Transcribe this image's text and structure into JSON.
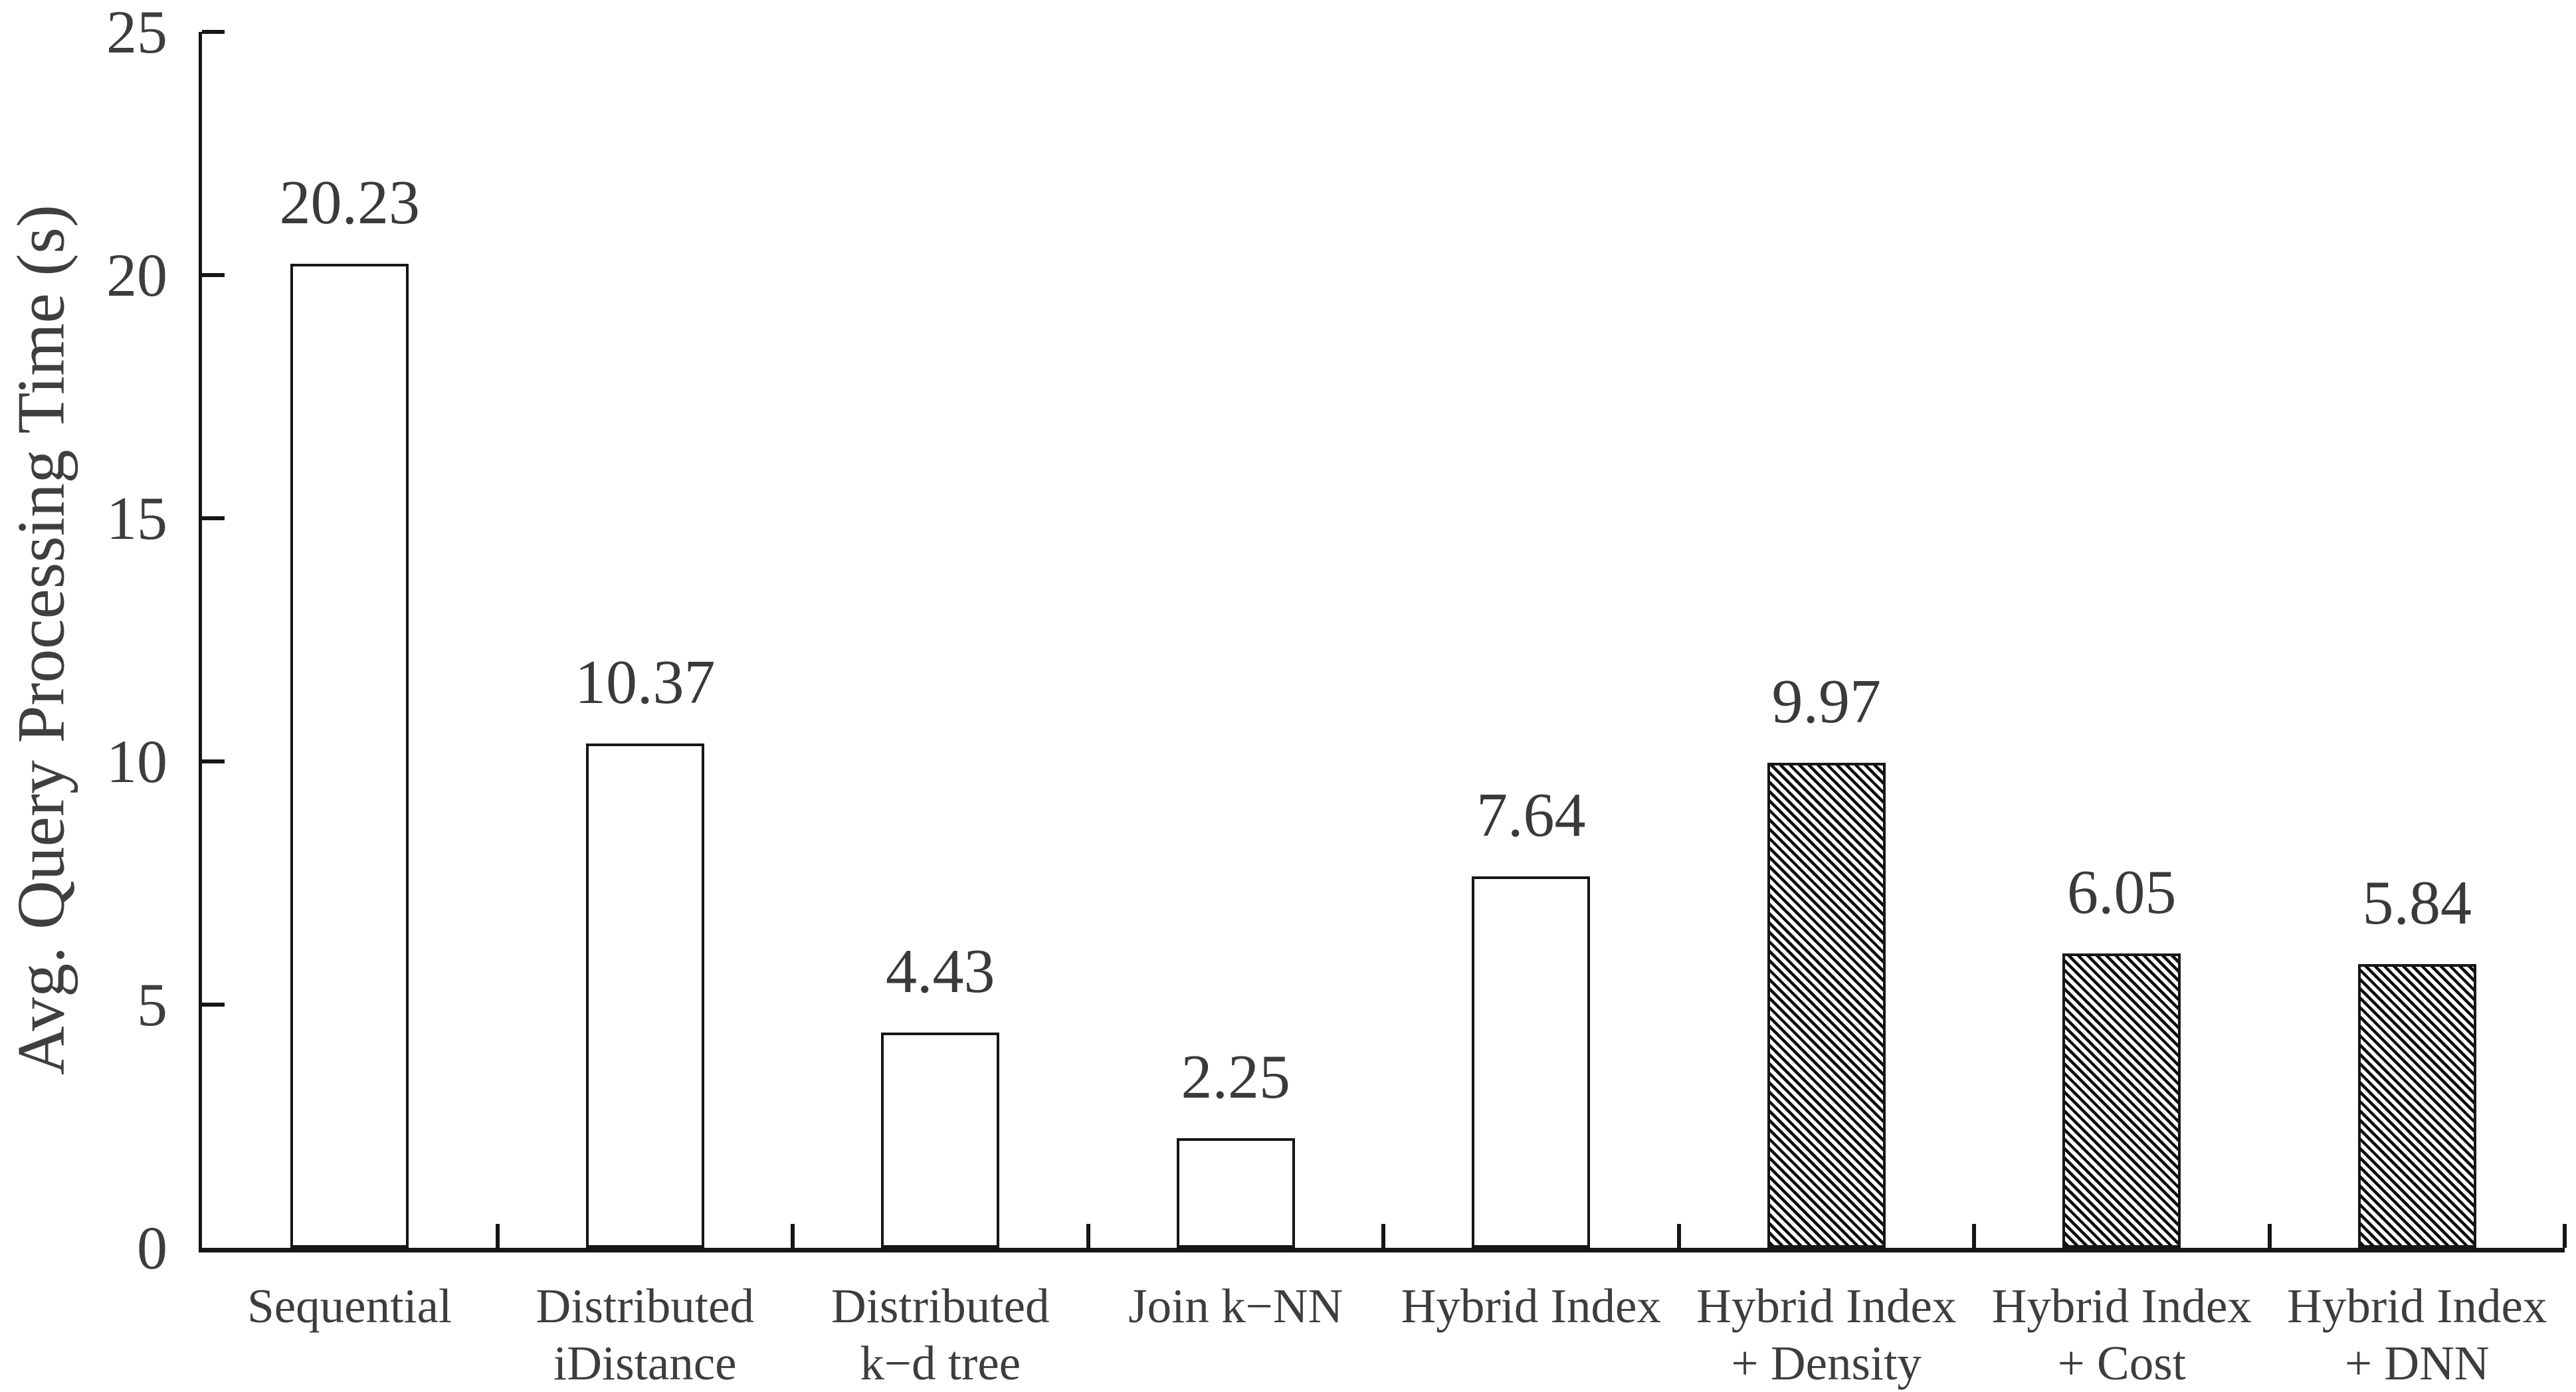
{
  "figure": {
    "background": "#ffffff"
  },
  "chart_data": {
    "type": "bar",
    "title": "",
    "xlabel": "",
    "ylabel": "Avg. Query Processing Time (s)",
    "ylim": [
      0,
      25
    ],
    "yticks": [
      0,
      5,
      10,
      15,
      20,
      25
    ],
    "ytick_labels": [
      "0",
      "5",
      "10",
      "15",
      "20",
      "25"
    ],
    "grid": false,
    "legend_position": "none",
    "categories": [
      "Sequential",
      "Distributed iDistance",
      "Distributed k−d tree",
      "Join k−NN",
      "Hybrid Index",
      "Hybrid Index + Density",
      "Hybrid Index + Cost",
      "Hybrid Index + DNN"
    ],
    "category_lines": [
      [
        "Sequential"
      ],
      [
        "Distributed",
        "iDistance"
      ],
      [
        "Distributed",
        "k−d tree"
      ],
      [
        "Join k−NN"
      ],
      [
        "Hybrid Index"
      ],
      [
        "Hybrid Index",
        "+ Density"
      ],
      [
        "Hybrid Index",
        "+ Cost"
      ],
      [
        "Hybrid Index",
        "+ DNN"
      ]
    ],
    "values": [
      20.23,
      10.37,
      4.43,
      2.25,
      7.64,
      9.97,
      6.05,
      5.84
    ],
    "value_labels": [
      "20.23",
      "10.37",
      "4.43",
      "2.25",
      "7.64",
      "9.97",
      "6.05",
      "5.84"
    ],
    "hatched": [
      false,
      false,
      false,
      false,
      false,
      true,
      true,
      true
    ],
    "bar_style": {
      "fill": "#ffffff",
      "border_color": "#161616",
      "hatch_pattern": "diagonal-backslash",
      "hatch_color": "#0d0d0d"
    },
    "text_color": "#3d3d3d",
    "axis_color": "#161616"
  }
}
